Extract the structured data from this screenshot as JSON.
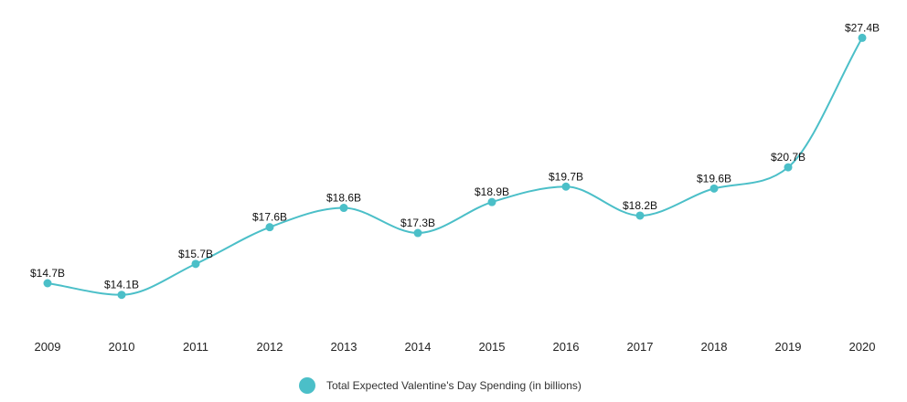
{
  "chart_data": {
    "type": "line",
    "title": "",
    "xlabel": "",
    "ylabel": "",
    "categories": [
      "2009",
      "2010",
      "2011",
      "2012",
      "2013",
      "2014",
      "2015",
      "2016",
      "2017",
      "2018",
      "2019",
      "2020"
    ],
    "series": [
      {
        "name": "Total Expected Valentine's Day Spending (in billions)",
        "color": "#4bbfc8",
        "values": [
          14.7,
          14.1,
          15.7,
          17.6,
          18.6,
          17.3,
          18.9,
          19.7,
          18.2,
          19.6,
          20.7,
          27.4
        ],
        "labels": [
          "$14.7B",
          "$14.1B",
          "$15.7B",
          "$17.6B",
          "$18.6B",
          "$17.3B",
          "$18.9B",
          "$19.7B",
          "$18.2B",
          "$19.6B",
          "$20.7B",
          "$27.4B"
        ]
      }
    ],
    "legend": {
      "position": "bottom",
      "label": "Total Expected Valentine's Day Spending (in billions)"
    },
    "grid": false
  }
}
